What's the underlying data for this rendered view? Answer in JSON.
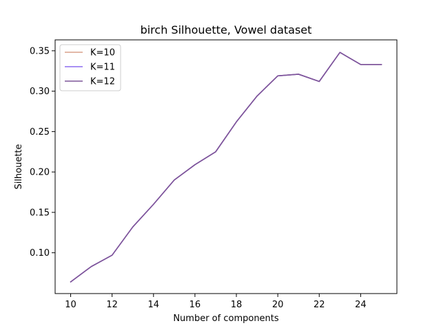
{
  "chart_data": {
    "type": "line",
    "title": "birch Silhouette, Vowel dataset",
    "xlabel": "Number of components",
    "ylabel": "Silhouette",
    "xlim": [
      9.25,
      25.75
    ],
    "ylim": [
      0.0495,
      0.3635
    ],
    "xticks": [
      10,
      12,
      14,
      16,
      18,
      20,
      22,
      24
    ],
    "xtick_labels": [
      "10",
      "12",
      "14",
      "16",
      "18",
      "20",
      "22",
      "24"
    ],
    "yticks": [
      0.1,
      0.15,
      0.2,
      0.25,
      0.3,
      0.35
    ],
    "ytick_labels": [
      "0.10",
      "0.15",
      "0.20",
      "0.25",
      "0.30",
      "0.35"
    ],
    "grid": false,
    "legend_position": "top-left",
    "x": [
      10,
      11,
      12,
      13,
      14,
      15,
      16,
      17,
      18,
      19,
      20,
      21,
      22,
      23,
      24,
      25
    ],
    "series": [
      {
        "name": "K=10",
        "color": "#d9a08a",
        "values": [
          0.064,
          0.083,
          0.097,
          0.132,
          0.16,
          0.19,
          0.209,
          0.225,
          0.262,
          0.294,
          0.319,
          0.321,
          0.312,
          0.348,
          0.333,
          0.333
        ]
      },
      {
        "name": "K=11",
        "color": "#8c6cf0",
        "values": [
          0.064,
          0.083,
          0.097,
          0.132,
          0.16,
          0.19,
          0.209,
          0.225,
          0.262,
          0.294,
          0.319,
          0.321,
          0.312,
          0.348,
          0.333,
          0.333
        ]
      },
      {
        "name": "K=12",
        "color": "#7d5599",
        "values": [
          0.064,
          0.083,
          0.097,
          0.132,
          0.16,
          0.19,
          0.209,
          0.225,
          0.262,
          0.294,
          0.319,
          0.321,
          0.312,
          0.348,
          0.333,
          0.333
        ]
      }
    ]
  }
}
